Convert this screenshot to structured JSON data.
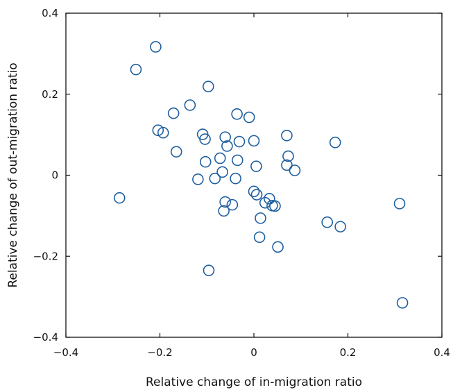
{
  "chart_data": {
    "type": "scatter",
    "title": "",
    "xlabel": "Relative change of in-migration ratio",
    "ylabel": "Relative change of out-migration ratio",
    "xlim": [
      -0.4,
      0.4
    ],
    "ylim": [
      -0.4,
      0.4
    ],
    "xticks": [
      -0.4,
      -0.2,
      0,
      0.2,
      0.4
    ],
    "yticks": [
      -0.4,
      -0.2,
      0,
      0.2,
      0.4
    ],
    "xtick_labels": [
      "−0.4",
      "−0.2",
      "0",
      "0.2",
      "0.4"
    ],
    "ytick_labels": [
      "−0.4",
      "−0.2",
      "0",
      "0.2",
      "0.4"
    ],
    "grid": false,
    "marker_color": "#1f5fa0",
    "marker": "open-circle",
    "points": [
      {
        "x": -0.209,
        "y": 0.317
      },
      {
        "x": -0.251,
        "y": 0.261
      },
      {
        "x": -0.097,
        "y": 0.219
      },
      {
        "x": -0.136,
        "y": 0.173
      },
      {
        "x": -0.171,
        "y": 0.153
      },
      {
        "x": -0.036,
        "y": 0.151
      },
      {
        "x": -0.01,
        "y": 0.143
      },
      {
        "x": -0.204,
        "y": 0.111
      },
      {
        "x": -0.193,
        "y": 0.105
      },
      {
        "x": -0.109,
        "y": 0.101
      },
      {
        "x": 0.07,
        "y": 0.098
      },
      {
        "x": -0.061,
        "y": 0.094
      },
      {
        "x": -0.104,
        "y": 0.089
      },
      {
        "x": 0.0,
        "y": 0.085
      },
      {
        "x": -0.031,
        "y": 0.083
      },
      {
        "x": 0.173,
        "y": 0.081
      },
      {
        "x": -0.057,
        "y": 0.072
      },
      {
        "x": -0.165,
        "y": 0.058
      },
      {
        "x": 0.073,
        "y": 0.047
      },
      {
        "x": -0.072,
        "y": 0.042
      },
      {
        "x": -0.035,
        "y": 0.037
      },
      {
        "x": -0.103,
        "y": 0.033
      },
      {
        "x": 0.07,
        "y": 0.025
      },
      {
        "x": 0.005,
        "y": 0.022
      },
      {
        "x": 0.087,
        "y": 0.012
      },
      {
        "x": -0.067,
        "y": 0.008
      },
      {
        "x": -0.119,
        "y": -0.01
      },
      {
        "x": -0.083,
        "y": -0.008
      },
      {
        "x": -0.039,
        "y": -0.008
      },
      {
        "x": -0.286,
        "y": -0.056
      },
      {
        "x": 0.0,
        "y": -0.04
      },
      {
        "x": 0.006,
        "y": -0.048
      },
      {
        "x": 0.033,
        "y": -0.058
      },
      {
        "x": -0.061,
        "y": -0.066
      },
      {
        "x": 0.024,
        "y": -0.068
      },
      {
        "x": -0.046,
        "y": -0.073
      },
      {
        "x": 0.039,
        "y": -0.075
      },
      {
        "x": 0.045,
        "y": -0.076
      },
      {
        "x": 0.31,
        "y": -0.07
      },
      {
        "x": -0.064,
        "y": -0.088
      },
      {
        "x": 0.014,
        "y": -0.106
      },
      {
        "x": 0.156,
        "y": -0.116
      },
      {
        "x": 0.184,
        "y": -0.127
      },
      {
        "x": 0.012,
        "y": -0.153
      },
      {
        "x": 0.051,
        "y": -0.177
      },
      {
        "x": -0.096,
        "y": -0.235
      },
      {
        "x": 0.316,
        "y": -0.315
      }
    ]
  }
}
